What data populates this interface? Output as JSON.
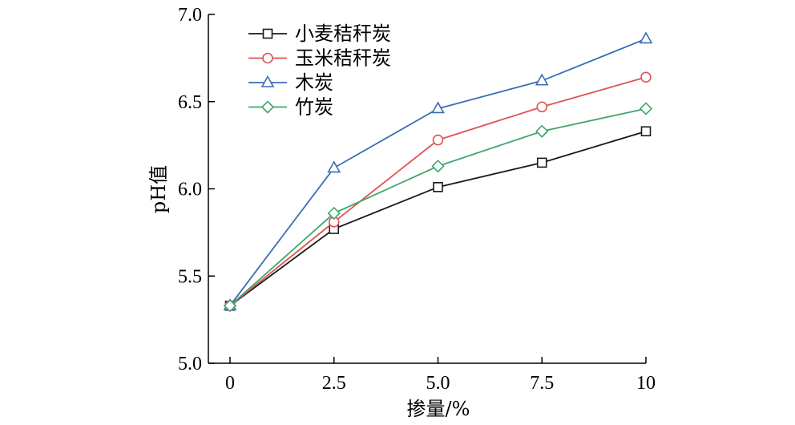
{
  "chart_data": {
    "type": "line",
    "xlabel": "掺量/%",
    "ylabel": "pH值",
    "x": [
      0,
      2.5,
      5.0,
      7.5,
      10
    ],
    "x_tick_labels": [
      "0",
      "2.5",
      "5.0",
      "7.5",
      "10"
    ],
    "xlim": [
      0,
      10
    ],
    "ylim": [
      5.0,
      7.0
    ],
    "y_ticks": [
      5.0,
      5.5,
      6.0,
      6.5,
      7.0
    ],
    "y_tick_labels": [
      "5.0",
      "5.5",
      "6.0",
      "6.5",
      "7.0"
    ],
    "grid": false,
    "legend_position": "top-left",
    "series": [
      {
        "name": "小麦秸秆炭",
        "color": "#1a1a1a",
        "marker": "square",
        "values": [
          5.33,
          5.77,
          6.01,
          6.15,
          6.33
        ]
      },
      {
        "name": "玉米秸秆炭",
        "color": "#e05252",
        "marker": "circle",
        "values": [
          5.33,
          5.81,
          6.28,
          6.47,
          6.64
        ]
      },
      {
        "name": "木炭",
        "color": "#3a6db5",
        "marker": "triangle",
        "values": [
          5.33,
          6.12,
          6.46,
          6.62,
          6.86
        ]
      },
      {
        "name": "竹炭",
        "color": "#3fa66b",
        "marker": "diamond",
        "values": [
          5.33,
          5.86,
          6.13,
          6.33,
          6.46
        ]
      }
    ]
  }
}
